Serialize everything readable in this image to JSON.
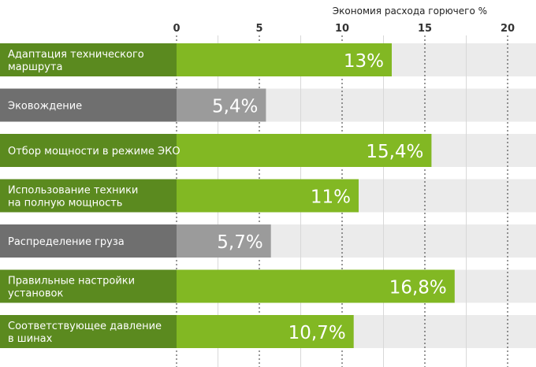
{
  "chart_data": {
    "type": "bar",
    "orientation": "horizontal",
    "title": "Экономия расхода горючего %",
    "xlabel": "Экономия расхода горючего %",
    "ylabel": "",
    "xlim": [
      0,
      21.5
    ],
    "xticks": [
      0,
      5,
      10,
      15,
      20
    ],
    "grid": true,
    "categories": [
      "Адаптация технического маршрута",
      "Эковождение",
      "Отбор мощности в режиме ЭКО",
      "Использование техники на полную мощность",
      "Распределение груза",
      "Правильные настройки установок",
      "Соответствующее давление в шинах"
    ],
    "label_lines": [
      [
        "Адаптация технического",
        "маршрута"
      ],
      [
        "Эковождение"
      ],
      [
        "Отбор мощности в режиме ЭКО"
      ],
      [
        "Использование техники",
        "на полную мощность"
      ],
      [
        "Распределение груза"
      ],
      [
        "Правильные настройки",
        "установок"
      ],
      [
        "Соответствующее давление",
        "в шинах"
      ]
    ],
    "values": [
      13,
      5.4,
      15.4,
      11,
      5.7,
      16.8,
      10.7
    ],
    "value_labels": [
      "13%",
      "5,4%",
      "15,4%",
      "11%",
      "5,7%",
      "16,8%",
      "10,7%"
    ],
    "highlight": [
      "green",
      "gray",
      "green",
      "green",
      "gray",
      "green",
      "green"
    ]
  },
  "colors": {
    "green_label": "#5b8a1f",
    "green_bar": "#82b823",
    "gray_label": "#6f6f6f",
    "gray_bar": "#9b9b9b",
    "track": "#ebebeb"
  }
}
